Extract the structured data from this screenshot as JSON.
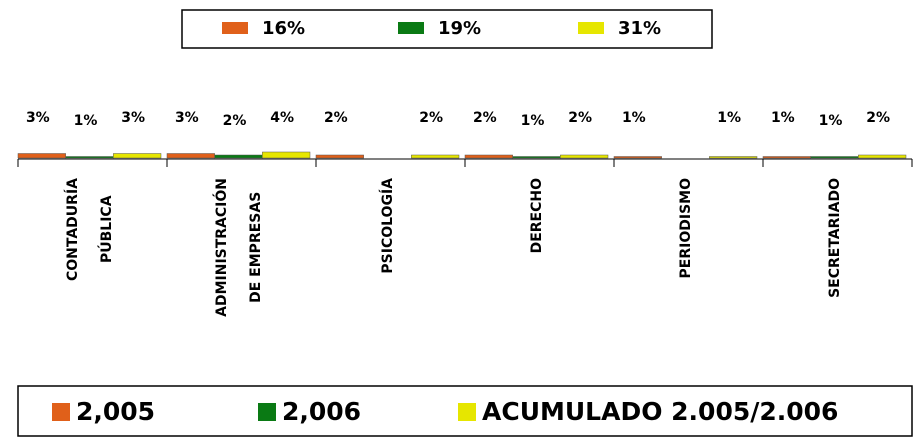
{
  "chart_data": {
    "type": "bar",
    "categories": [
      "CONTADURÍA\nPÚBLICA",
      "ADMINISTRACIÓN\nDE EMPRESAS",
      "PSICOLOGÍA",
      "DERECHO",
      "PERIODISMO",
      "SECRETARIADO"
    ],
    "series": [
      {
        "name": "2,005",
        "color": "#e0601a",
        "values": [
          3,
          3,
          2,
          2,
          1,
          1
        ],
        "value_labels": [
          "3%",
          "3%",
          "2%",
          "2%",
          "1%",
          "1%"
        ]
      },
      {
        "name": "2,006",
        "color": "#0a7a14",
        "values": [
          1,
          2,
          null,
          1,
          null,
          1
        ],
        "value_labels": [
          "1%",
          "2%",
          null,
          "1%",
          null,
          "1%"
        ]
      },
      {
        "name": "ACUMULADO 2.005/2.006",
        "color": "#e6e600",
        "values": [
          3,
          4,
          2,
          2,
          1,
          2
        ],
        "value_labels": [
          "3%",
          "4%",
          "2%",
          "2%",
          "1%",
          "2%"
        ]
      }
    ],
    "summary": [
      "16%",
      "19%",
      "31%"
    ],
    "ylim": [
      0,
      100
    ]
  }
}
